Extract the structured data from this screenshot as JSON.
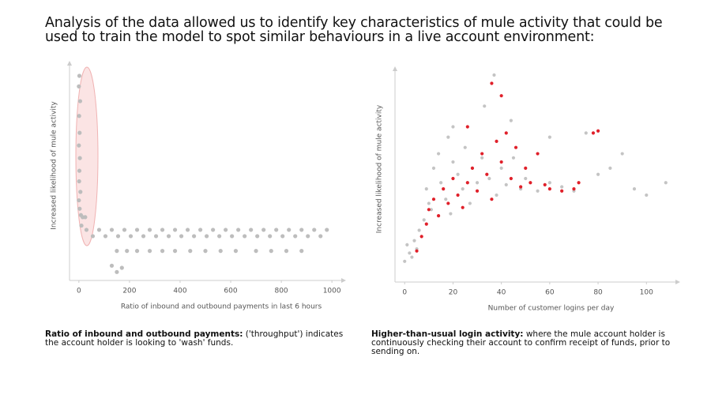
{
  "heading": "Analysis of the data allowed us to identify key characteristics of mule activity that could be used to train the model to spot similar behaviours in a live account environment:",
  "chart_data": [
    {
      "type": "scatter",
      "ylabel": "Increased likelihood of mule activity",
      "xlabel": "Ratio of inbound and outbound payments in last 6 hours",
      "caption_bold": "Ratio of inbound and outbound payments:",
      "caption": "('throughput') indicates the account holder is looking to 'wash' funds.",
      "xlim": [
        -37,
        1037
      ],
      "xticks": [
        0,
        200,
        400,
        600,
        800,
        1000
      ],
      "ylim": [
        0,
        100
      ],
      "series": [
        {
          "color": "#bdbdbd",
          "x": [
            2,
            0,
            5,
            1,
            3,
            0,
            4,
            2,
            1,
            6,
            0,
            3,
            8,
            15,
            25,
            10,
            30,
            80,
            130,
            180,
            230,
            280,
            330,
            380,
            430,
            480,
            530,
            580,
            630,
            680,
            730,
            780,
            830,
            880,
            930,
            980,
            55,
            105,
            155,
            205,
            255,
            305,
            355,
            405,
            455,
            505,
            555,
            605,
            655,
            705,
            755,
            805,
            855,
            905,
            955,
            150,
            190,
            230,
            280,
            330,
            380,
            440,
            500,
            560,
            620,
            700,
            760,
            820,
            880,
            130,
            170,
            150
          ],
          "values": [
            97,
            92,
            85,
            78,
            70,
            64,
            58,
            52,
            47,
            42,
            38,
            34,
            31,
            30,
            30,
            26,
            24,
            24,
            24,
            24,
            24,
            24,
            24,
            24,
            24,
            24,
            24,
            24,
            24,
            24,
            24,
            24,
            24,
            24,
            24,
            24,
            21,
            21,
            21,
            21,
            21,
            21,
            21,
            21,
            21,
            21,
            21,
            21,
            21,
            21,
            21,
            21,
            21,
            21,
            21,
            14,
            14,
            14,
            14,
            14,
            14,
            14,
            14,
            14,
            14,
            14,
            14,
            14,
            14,
            7,
            6,
            4
          ]
        }
      ]
    },
    {
      "type": "scatter",
      "ylabel": "Increased likelihood of mule activity",
      "xlabel": "Number of customer logins per day",
      "caption_bold": "Higher-than-usual login activity:",
      "caption": "where the mule account holder is continuously checking their account to confirm receipt of funds, prior to sending on.",
      "xlim": [
        -4,
        112
      ],
      "xticks": [
        0,
        20,
        40,
        60,
        80,
        100
      ],
      "ylim": [
        0,
        100
      ],
      "series": [
        {
          "color": "#c4c4c4",
          "x": [
            0,
            2,
            1,
            4,
            3,
            6,
            5,
            8,
            10,
            9,
            12,
            11,
            14,
            15,
            18,
            17,
            20,
            22,
            19,
            25,
            24,
            28,
            30,
            27,
            32,
            35,
            38,
            40,
            42,
            45,
            48,
            50,
            55,
            60,
            65,
            70,
            75,
            80,
            85,
            90,
            95,
            100,
            108,
            37,
            20,
            33,
            44,
            60
          ],
          "values": [
            10,
            14,
            18,
            20,
            12,
            25,
            16,
            30,
            38,
            45,
            55,
            35,
            62,
            48,
            70,
            40,
            58,
            52,
            33,
            65,
            45,
            55,
            48,
            38,
            60,
            50,
            42,
            55,
            47,
            60,
            45,
            50,
            44,
            48,
            46,
            44,
            72,
            52,
            55,
            62,
            45,
            42,
            48,
            100,
            75,
            85,
            78,
            70
          ]
        },
        {
          "color": "#e0202a",
          "x": [
            5,
            7,
            9,
            10,
            12,
            14,
            16,
            18,
            20,
            22,
            24,
            26,
            28,
            30,
            32,
            34,
            36,
            38,
            40,
            42,
            44,
            46,
            48,
            50,
            52,
            55,
            58,
            60,
            65,
            70,
            72,
            78,
            80,
            36,
            40,
            26
          ],
          "values": [
            15,
            22,
            28,
            35,
            40,
            32,
            45,
            38,
            50,
            42,
            36,
            48,
            55,
            44,
            62,
            52,
            40,
            68,
            58,
            72,
            50,
            65,
            46,
            55,
            48,
            62,
            47,
            45,
            44,
            45,
            48,
            72,
            73,
            96,
            90,
            75
          ]
        }
      ]
    }
  ]
}
